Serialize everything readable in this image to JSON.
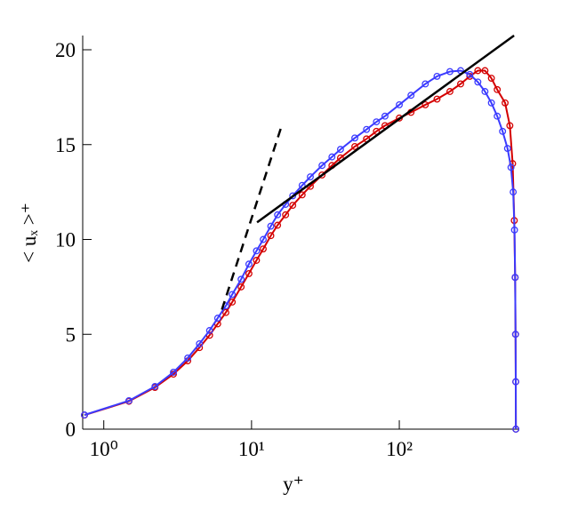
{
  "chart_data": {
    "type": "line",
    "xlabel": "y⁺",
    "ylabel": "< uₓ >⁺",
    "xlog": true,
    "xlim": [
      0.72,
      640
    ],
    "ylim": [
      0,
      20.75
    ],
    "xticks": [
      {
        "value": 1,
        "label": "10⁰"
      },
      {
        "value": 10,
        "label": "10¹"
      },
      {
        "value": 100,
        "label": "10²"
      }
    ],
    "yticks": [
      0,
      5,
      10,
      15,
      20
    ],
    "series": [
      {
        "color": "#d40000",
        "marker": "circle",
        "dash": false,
        "x": [
          0.74,
          1.48,
          2.22,
          2.96,
          3.7,
          4.44,
          5.2,
          5.9,
          6.7,
          7.4,
          8.5,
          9.6,
          10.8,
          12,
          13.5,
          15,
          17,
          19,
          22,
          25,
          30,
          35,
          40,
          50,
          60,
          70,
          80,
          100,
          120,
          150,
          180,
          220,
          260,
          300,
          340,
          380,
          420,
          460,
          520,
          560,
          585,
          600,
          608,
          612,
          614,
          615
        ],
        "values": [
          0.74,
          1.47,
          2.2,
          2.9,
          3.6,
          4.3,
          4.95,
          5.55,
          6.15,
          6.7,
          7.5,
          8.2,
          8.9,
          9.5,
          10.2,
          10.75,
          11.3,
          11.8,
          12.35,
          12.8,
          13.4,
          13.9,
          14.3,
          14.9,
          15.3,
          15.7,
          16.0,
          16.4,
          16.7,
          17.1,
          17.4,
          17.8,
          18.2,
          18.6,
          18.9,
          18.9,
          18.5,
          17.9,
          17.2,
          16.0,
          14,
          11,
          8,
          5,
          2.5,
          0
        ]
      },
      {
        "color": "#3b3bff",
        "marker": "circle",
        "dash": false,
        "x": [
          0.74,
          1.48,
          2.22,
          2.96,
          3.7,
          4.44,
          5.2,
          5.9,
          6.7,
          7.4,
          8.5,
          9.6,
          10.8,
          12,
          13.5,
          15,
          17,
          19,
          22,
          25,
          30,
          35,
          40,
          50,
          60,
          70,
          80,
          100,
          120,
          150,
          180,
          220,
          260,
          300,
          340,
          380,
          420,
          460,
          500,
          540,
          570,
          590,
          602,
          608,
          612,
          614,
          615
        ],
        "values": [
          0.75,
          1.5,
          2.25,
          3.0,
          3.75,
          4.5,
          5.2,
          5.85,
          6.5,
          7.1,
          7.9,
          8.7,
          9.4,
          10.0,
          10.7,
          11.3,
          11.85,
          12.3,
          12.85,
          13.3,
          13.9,
          14.35,
          14.75,
          15.35,
          15.8,
          16.2,
          16.5,
          17.1,
          17.6,
          18.2,
          18.6,
          18.85,
          18.9,
          18.7,
          18.3,
          17.8,
          17.2,
          16.5,
          15.7,
          14.8,
          13.8,
          12.5,
          10.5,
          8,
          5,
          2.5,
          0
        ]
      },
      {
        "color": "#000000",
        "marker": "none",
        "dash": false,
        "x": [
          10.9,
          598
        ],
        "values": [
          10.9,
          20.75
        ]
      },
      {
        "color": "#000000",
        "marker": "none",
        "dash": true,
        "x": [
          6.3,
          16
        ],
        "values": [
          6.3,
          16
        ]
      }
    ]
  }
}
